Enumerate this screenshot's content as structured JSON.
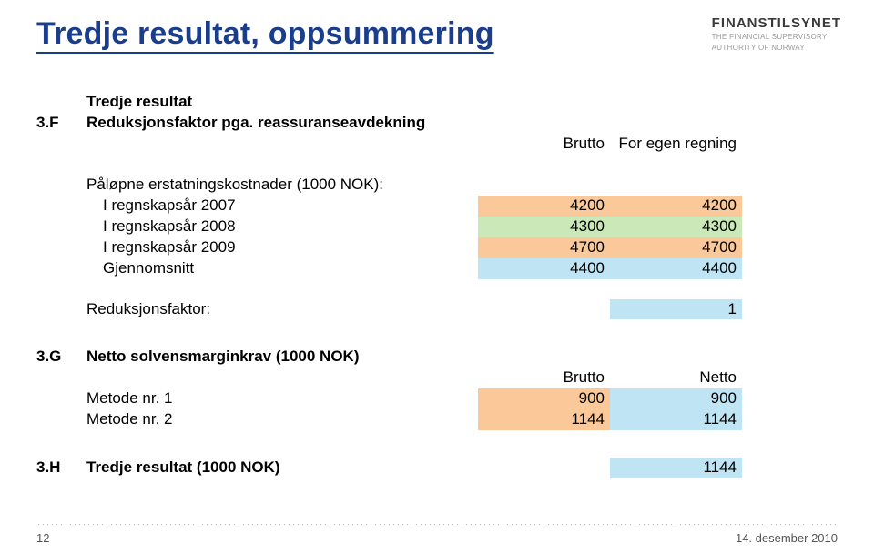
{
  "colors": {
    "title": "#1a3e8c",
    "hl_orange": "#fbc999",
    "hl_green": "#cbe8b9",
    "hl_blue": "#bfe4f4"
  },
  "title": "Tredje resultat, oppsummering",
  "logo": {
    "main": "FINANSTILSYNET",
    "sub1": "THE FINANCIAL SUPERVISORY",
    "sub2": "AUTHORITY OF NORWAY"
  },
  "section_f": {
    "code": "3.F",
    "line1": "Tredje resultat",
    "line2": "Reduksjonsfaktor pga. reassuranseavdekning",
    "col1": "Brutto",
    "col2": "For egen regning",
    "sub_heading": "Påløpne erstatningskostnader (1000 NOK):",
    "rows": [
      {
        "label": "I regnskapsår 2007",
        "v1": "4200",
        "v2": "4200",
        "hl": "hl-orange"
      },
      {
        "label": "I regnskapsår 2008",
        "v1": "4300",
        "v2": "4300",
        "hl": "hl-green"
      },
      {
        "label": "I regnskapsår 2009",
        "v1": "4700",
        "v2": "4700",
        "hl": "hl-orange"
      },
      {
        "label": "Gjennomsnitt",
        "v1": "4400",
        "v2": "4400",
        "hl": "hl-blue"
      }
    ],
    "reduksjon_label": "Reduksjonsfaktor:",
    "reduksjon_value": "1"
  },
  "section_g": {
    "code": "3.G",
    "heading": "Netto solvensmarginkrav (1000 NOK)",
    "col1": "Brutto",
    "col2": "Netto",
    "rows": [
      {
        "label": "Metode nr. 1",
        "v1": "900",
        "v2": "900",
        "hl1": "hl-orange",
        "hl2": "hl-blue"
      },
      {
        "label": "Metode nr. 2",
        "v1": "1144",
        "v2": "1144",
        "hl1": "hl-orange",
        "hl2": "hl-blue"
      }
    ]
  },
  "section_h": {
    "code": "3.H",
    "heading": "Tredje resultat (1000 NOK)",
    "value": "1144"
  },
  "footer": {
    "page": "12",
    "date": "14. desember 2010"
  }
}
